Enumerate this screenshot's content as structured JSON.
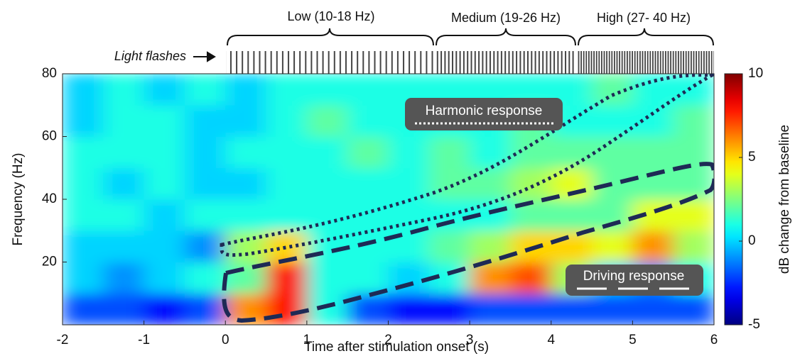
{
  "chart_data": {
    "type": "heatmap",
    "xlabel": "Time after stimulation onset (s)",
    "ylabel": "Frequency (Hz)",
    "colorbar_label": "dB change from baseline",
    "colormap": "jet",
    "clim": [
      -5,
      10
    ],
    "cticks": [
      -5,
      0,
      5,
      10
    ],
    "xlim": [
      -2,
      6
    ],
    "xticks": [
      -2,
      -1,
      0,
      1,
      2,
      3,
      4,
      5,
      6
    ],
    "ylim": [
      0,
      80
    ],
    "yticks": [
      20,
      40,
      60,
      80
    ],
    "x_edges": [
      -2,
      -1.5,
      -1,
      -0.5,
      0,
      0.5,
      1,
      1.5,
      2,
      2.5,
      3,
      3.5,
      4,
      4.5,
      5,
      5.5,
      6
    ],
    "y_edges": [
      0,
      10,
      20,
      30,
      40,
      50,
      60,
      70,
      80
    ],
    "values": [
      [
        -2,
        -2,
        -3,
        -2,
        6,
        8,
        1,
        -2,
        -3,
        -3,
        -2,
        -2,
        -2,
        -2,
        -2,
        -2
      ],
      [
        0,
        -1,
        0,
        1,
        2,
        8,
        1,
        1,
        0,
        1,
        6,
        7,
        3,
        0,
        -1,
        1
      ],
      [
        0,
        0,
        0,
        -1,
        3,
        5,
        1,
        1,
        1,
        2,
        3,
        5,
        5,
        4,
        6,
        3
      ],
      [
        1,
        1,
        0,
        1,
        1,
        1,
        1,
        1,
        1,
        1,
        1,
        2,
        2,
        2,
        4,
        4
      ],
      [
        1,
        0,
        1,
        0,
        0,
        1,
        1,
        1,
        1,
        2,
        2,
        3,
        4,
        2,
        2,
        2
      ],
      [
        1,
        1,
        1,
        0,
        1,
        1,
        1,
        2,
        1,
        2,
        1,
        2,
        2,
        2,
        2,
        2
      ],
      [
        0,
        1,
        1,
        0,
        0,
        1,
        2,
        1,
        1,
        1,
        1,
        2,
        1,
        1,
        1,
        2
      ],
      [
        0,
        1,
        0,
        1,
        0,
        1,
        1,
        1,
        1,
        1,
        1,
        1,
        1,
        2,
        1,
        1
      ]
    ],
    "annotations": {
      "light_flashes": "Light flashes",
      "low": "Low (10-18 Hz)",
      "medium": "Medium (19-26 Hz)",
      "high": "High (27- 40 Hz)",
      "harmonic": "Harmonic response",
      "driving": "Driving response"
    }
  }
}
